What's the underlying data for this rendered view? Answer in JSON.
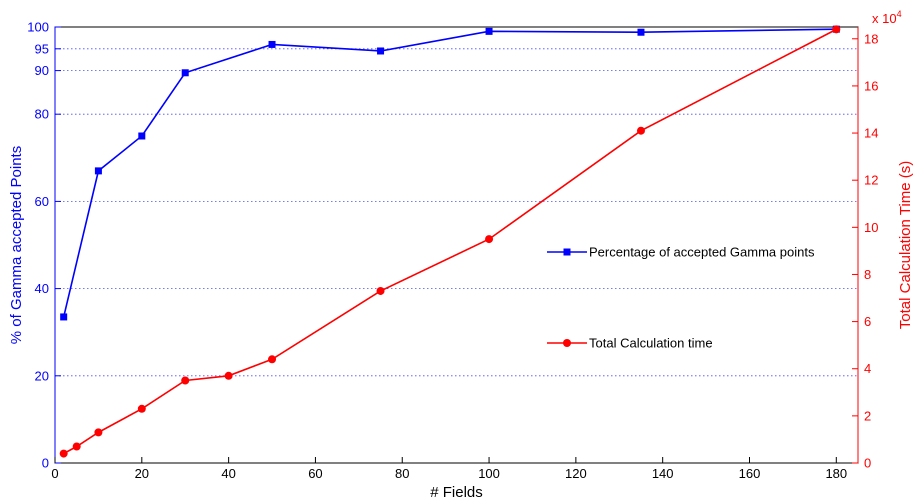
{
  "chart_data": {
    "type": "line",
    "xlabel": "# Fields",
    "ylabel": "% of Gamma accepted Points",
    "y2label": "Total Calculation Time (s)",
    "y2_exponent_label": "x 10",
    "y2_exponent_power": "4",
    "xlim": [
      0,
      185
    ],
    "ylim": [
      0,
      100
    ],
    "y2lim": [
      0,
      185000
    ],
    "x_ticks": [
      "0",
      "20",
      "40",
      "60",
      "80",
      "100",
      "120",
      "140",
      "160",
      "180"
    ],
    "y_ticks": [
      "0",
      "20",
      "40",
      "60",
      "80",
      "90",
      "95",
      "100"
    ],
    "y2_ticks": [
      "0",
      "2",
      "4",
      "6",
      "8",
      "10",
      "12",
      "14",
      "16",
      "18"
    ],
    "grid": "horizontal dotted",
    "series": [
      {
        "name": "Percentage of accepted Gamma points",
        "axis": "left",
        "color": "#0000ff",
        "marker": "square",
        "x": [
          2,
          10,
          20,
          30,
          50,
          75,
          100,
          135,
          180
        ],
        "y": [
          33.5,
          67,
          75,
          89.5,
          96,
          94.5,
          99,
          98.8,
          99.5
        ]
      },
      {
        "name": "Total Calculation time",
        "axis": "right",
        "color": "#ff0000",
        "marker": "circle",
        "x": [
          2,
          5,
          10,
          20,
          30,
          40,
          50,
          75,
          100,
          135,
          180
        ],
        "y": [
          4000,
          7000,
          13000,
          23000,
          35000,
          37000,
          44000,
          73000,
          95000,
          141000,
          184000
        ]
      }
    ]
  }
}
